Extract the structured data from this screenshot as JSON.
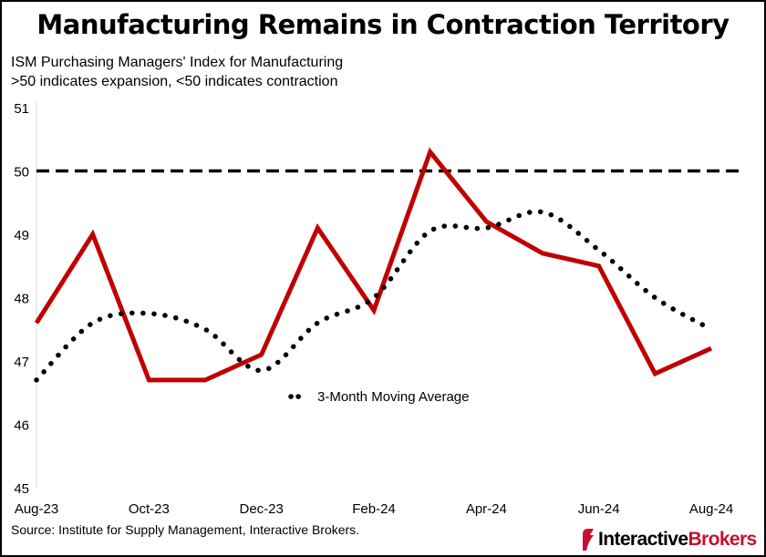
{
  "title": "Manufacturing Remains in Contraction Territory",
  "subtitle_line1": "ISM Purchasing Managers' Index for Manufacturing",
  "subtitle_line2": ">50 indicates expansion, <50 indicates contraction",
  "source": "Source: Institute for Supply Management, Interactive Brokers.",
  "logo": {
    "part1": "Interactive",
    "part2": "Brokers",
    "icon": "ib-logo-icon"
  },
  "colors": {
    "pmi_line": "#c00000",
    "moving_avg": "#000000",
    "threshold": "#000000",
    "logo_red": "#c8102e"
  },
  "chart_data": {
    "type": "line",
    "title": "Manufacturing Remains in Contraction Territory",
    "ylabel": "",
    "xlabel": "",
    "ylim": [
      45,
      51
    ],
    "yticks": [
      45,
      46,
      47,
      48,
      49,
      50,
      51
    ],
    "categories": [
      "Aug-23",
      "Sep-23",
      "Oct-23",
      "Nov-23",
      "Dec-23",
      "Jan-24",
      "Feb-24",
      "Mar-24",
      "Apr-24",
      "May-24",
      "Jun-24",
      "Jul-24",
      "Aug-24"
    ],
    "tick_labels": [
      "Aug-23",
      "Oct-23",
      "Dec-23",
      "Feb-24",
      "Apr-24",
      "Jun-24",
      "Aug-24"
    ],
    "grid": false,
    "threshold": {
      "value": 50,
      "style": "dashed"
    },
    "legend": {
      "label": "3-Month Moving Average",
      "placement": "bottom-left"
    },
    "series": [
      {
        "name": "ISM Manufacturing PMI",
        "style": "solid",
        "values": [
          47.6,
          49.0,
          46.7,
          46.7,
          47.1,
          49.1,
          47.8,
          50.3,
          49.2,
          48.7,
          48.5,
          46.8,
          47.2
        ]
      },
      {
        "name": "3-Month Moving Average",
        "style": "dotted",
        "values": [
          46.7,
          47.6,
          47.75,
          47.5,
          46.85,
          47.6,
          48.0,
          49.05,
          49.1,
          49.35,
          48.75,
          48.0,
          47.5
        ]
      }
    ]
  }
}
